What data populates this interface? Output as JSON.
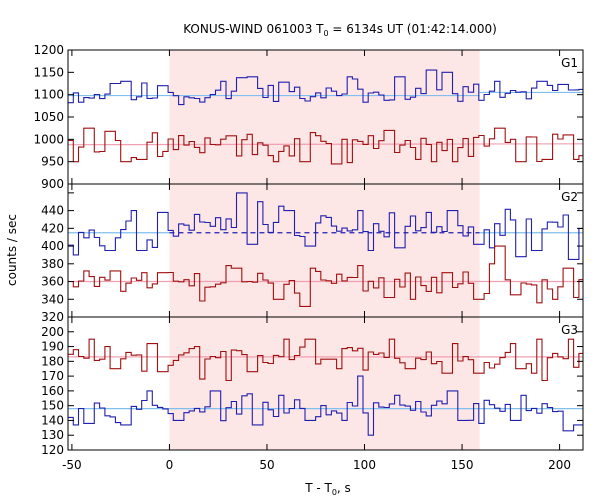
{
  "chart_data": {
    "type": "line",
    "title_main": "KONUS-WIND 061003 T",
    "title_sub": "0",
    "title_rest": " = 6134s UT (01:42:14.000)",
    "xlabel_main": "T - T",
    "xlabel_sub": "0",
    "xlabel_rest": ", s",
    "ylabel": "counts / sec",
    "xlim": [
      -52,
      212
    ],
    "xticks": [
      -50,
      0,
      50,
      100,
      150,
      200
    ],
    "xtick_labels": [
      "-50",
      "0",
      "50",
      "100",
      "150",
      "200"
    ],
    "shaded_interval": [
      0,
      159
    ],
    "colors": {
      "shade": "#fde6e6",
      "blue_series": "#2020b0",
      "red_series": "#a01010",
      "blue_fit": "#80bfee",
      "red_fit": "#f0a0b0",
      "blue_dashed": "#2020b0"
    },
    "panels": [
      {
        "label": "G1",
        "ylim": [
          900,
          1200
        ],
        "yticks": [
          900,
          950,
          1000,
          1050,
          1100,
          1150,
          1200
        ],
        "ytick_labels": [
          "900",
          "950",
          "1000",
          "1050",
          "1100",
          "1150",
          "1200"
        ],
        "series": [
          {
            "color": "blue",
            "fit": [
              1098,
              1105
            ],
            "fit_split": 159,
            "mean": 1100,
            "spread": 22,
            "peaks": [
              [
                -28,
                1125
              ],
              [
                -22,
                1130
              ],
              [
                -3,
                1120
              ],
              [
                28,
                1130
              ],
              [
                37,
                1138
              ],
              [
                43,
                1140
              ],
              [
                58,
                1128
              ],
              [
                92,
                1140
              ],
              [
                95,
                1135
              ],
              [
                118,
                1140
              ],
              [
                135,
                1155
              ],
              [
                143,
                1150
              ],
              [
                168,
                1130
              ],
              [
                191,
                1130
              ],
              [
                202,
                1123
              ]
            ],
            "seed": 11
          },
          {
            "color": "red",
            "fit": [
              988,
              990
            ],
            "fit_split": null,
            "mean": 988,
            "spread": 22,
            "peaks": [
              [
                -41,
                1025
              ],
              [
                -30,
                1018
              ],
              [
                -14,
                1010
              ],
              [
                32,
                1008
              ],
              [
                55,
                1000
              ],
              [
                88,
                1000
              ],
              [
                112,
                1020
              ],
              [
                170,
                1025
              ],
              [
                178,
                1000
              ],
              [
                205,
                1010
              ]
            ],
            "dips": [
              [
                -48,
                950
              ],
              [
                -22,
                950
              ],
              [
                -15,
                955
              ],
              [
                55,
                950
              ],
              [
                70,
                950
              ],
              [
                86,
                945
              ],
              [
                92,
                948
              ],
              [
                128,
                955
              ],
              [
                136,
                950
              ],
              [
                146,
                950
              ],
              [
                181,
                950
              ],
              [
                193,
                955
              ],
              [
                209,
                955
              ]
            ],
            "seed": 29
          }
        ]
      },
      {
        "label": "G2",
        "ylim": [
          320,
          470
        ],
        "yticks": [
          320,
          340,
          360,
          380,
          400,
          420,
          440,
          460
        ],
        "ytick_labels": [
          "320",
          "340",
          "360",
          "380",
          "400",
          "420",
          "440",
          "460"
        ],
        "series": [
          {
            "color": "blue",
            "fit": [
              415,
              415
            ],
            "fit_split": 0,
            "mean": 422,
            "spread": 12,
            "pre_mean": 412,
            "peaks": [
              [
                -17,
                440
              ],
              [
                -3,
                438
              ],
              [
                37,
                460
              ],
              [
                43,
                455
              ],
              [
                47,
                450
              ],
              [
                58,
                445
              ],
              [
                62,
                440
              ],
              [
                98,
                440
              ],
              [
                133,
                438
              ],
              [
                145,
                440
              ],
              [
                188,
                440
              ],
              [
                203,
                435
              ]
            ],
            "dips": [
              [
                -48,
                390
              ],
              [
                -30,
                395
              ],
              [
                -15,
                395
              ],
              [
                43,
                402
              ],
              [
                72,
                400
              ],
              [
                103,
                395
              ],
              [
                118,
                398
              ],
              [
                158,
                402
              ],
              [
                165,
                398
              ],
              [
                181,
                388
              ],
              [
                188,
                395
              ],
              [
                207,
                385
              ]
            ],
            "seed": 47
          },
          {
            "color": "red",
            "fit": [
              360,
              360
            ],
            "fit_split": null,
            "mean": 358,
            "spread": 10,
            "peaks": [
              [
                -43,
                372
              ],
              [
                -28,
                372
              ],
              [
                -4,
                370
              ],
              [
                32,
                378
              ],
              [
                35,
                375
              ],
              [
                73,
                375
              ],
              [
                98,
                378
              ],
              [
                143,
                370
              ],
              [
                167,
                380
              ],
              [
                170,
                400
              ],
              [
                205,
                375
              ]
            ],
            "dips": [
              [
                17,
                338
              ],
              [
                56,
                340
              ],
              [
                70,
                332
              ],
              [
                113,
                342
              ],
              [
                125,
                340
              ],
              [
                158,
                340
              ],
              [
                178,
                345
              ],
              [
                190,
                336
              ],
              [
                198,
                340
              ],
              [
                209,
                342
              ]
            ],
            "seed": 61
          }
        ]
      },
      {
        "label": "G3",
        "ylim": [
          120,
          210
        ],
        "yticks": [
          120,
          130,
          140,
          150,
          160,
          170,
          180,
          190,
          200,
          210
        ],
        "ytick_labels": [
          "120",
          "130",
          "140",
          "150",
          "160",
          "170",
          "180",
          "190",
          "200",
          "210"
        ],
        "series": [
          {
            "color": "red",
            "fit": [
              183,
              183
            ],
            "fit_split": null,
            "mean": 183,
            "spread": 6,
            "peaks": [
              [
                -40,
                195
              ],
              [
                -31,
                190
              ],
              [
                -8,
                192
              ],
              [
                14,
                190
              ],
              [
                60,
                195
              ],
              [
                73,
                195
              ],
              [
                114,
                195
              ],
              [
                146,
                192
              ],
              [
                177,
                192
              ],
              [
                188,
                195
              ],
              [
                206,
                195
              ]
            ],
            "dips": [
              [
                -28,
                175
              ],
              [
                -4,
                173
              ],
              [
                17,
                168
              ],
              [
                30,
                167
              ],
              [
                43,
                173
              ],
              [
                87,
                175
              ],
              [
                124,
                175
              ],
              [
                143,
                172
              ],
              [
                158,
                172
              ],
              [
                180,
                175
              ],
              [
                187,
                172
              ],
              [
                192,
                167
              ]
            ],
            "seed": 83
          },
          {
            "color": "blue",
            "fit": [
              148,
              148
            ],
            "fit_split": null,
            "mean": 148,
            "spread": 5,
            "peaks": [
              [
                -10,
                160
              ],
              [
                24,
                160
              ],
              [
                43,
                158
              ],
              [
                57,
                157
              ],
              [
                98,
                170
              ],
              [
                103,
                165
              ],
              [
                117,
                157
              ],
              [
                145,
                160
              ],
              [
                181,
                157
              ]
            ],
            "dips": [
              [
                -48,
                137
              ],
              [
                -41,
                138
              ],
              [
                -22,
                137
              ],
              [
                4,
                140
              ],
              [
                46,
                137
              ],
              [
                73,
                140
              ],
              [
                90,
                140
              ],
              [
                103,
                130
              ],
              [
                150,
                140
              ],
              [
                160,
                138
              ],
              [
                177,
                140
              ],
              [
                204,
                133
              ],
              [
                210,
                137
              ]
            ],
            "seed": 97
          }
        ]
      }
    ]
  }
}
